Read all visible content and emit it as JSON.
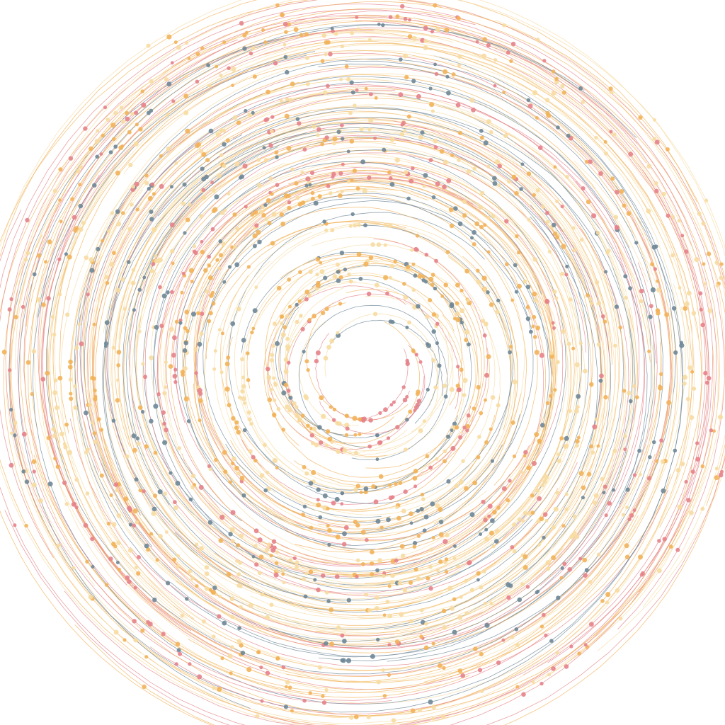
{
  "artwork": {
    "style": "concentric circular arcs with dots, radiating around a blank center",
    "background_color": "#ffffff",
    "palette": {
      "slate_blue": "#6f8797",
      "coral_red": "#e5838a",
      "amber": "#f2b25a",
      "cream": "#f7dba2"
    }
  }
}
